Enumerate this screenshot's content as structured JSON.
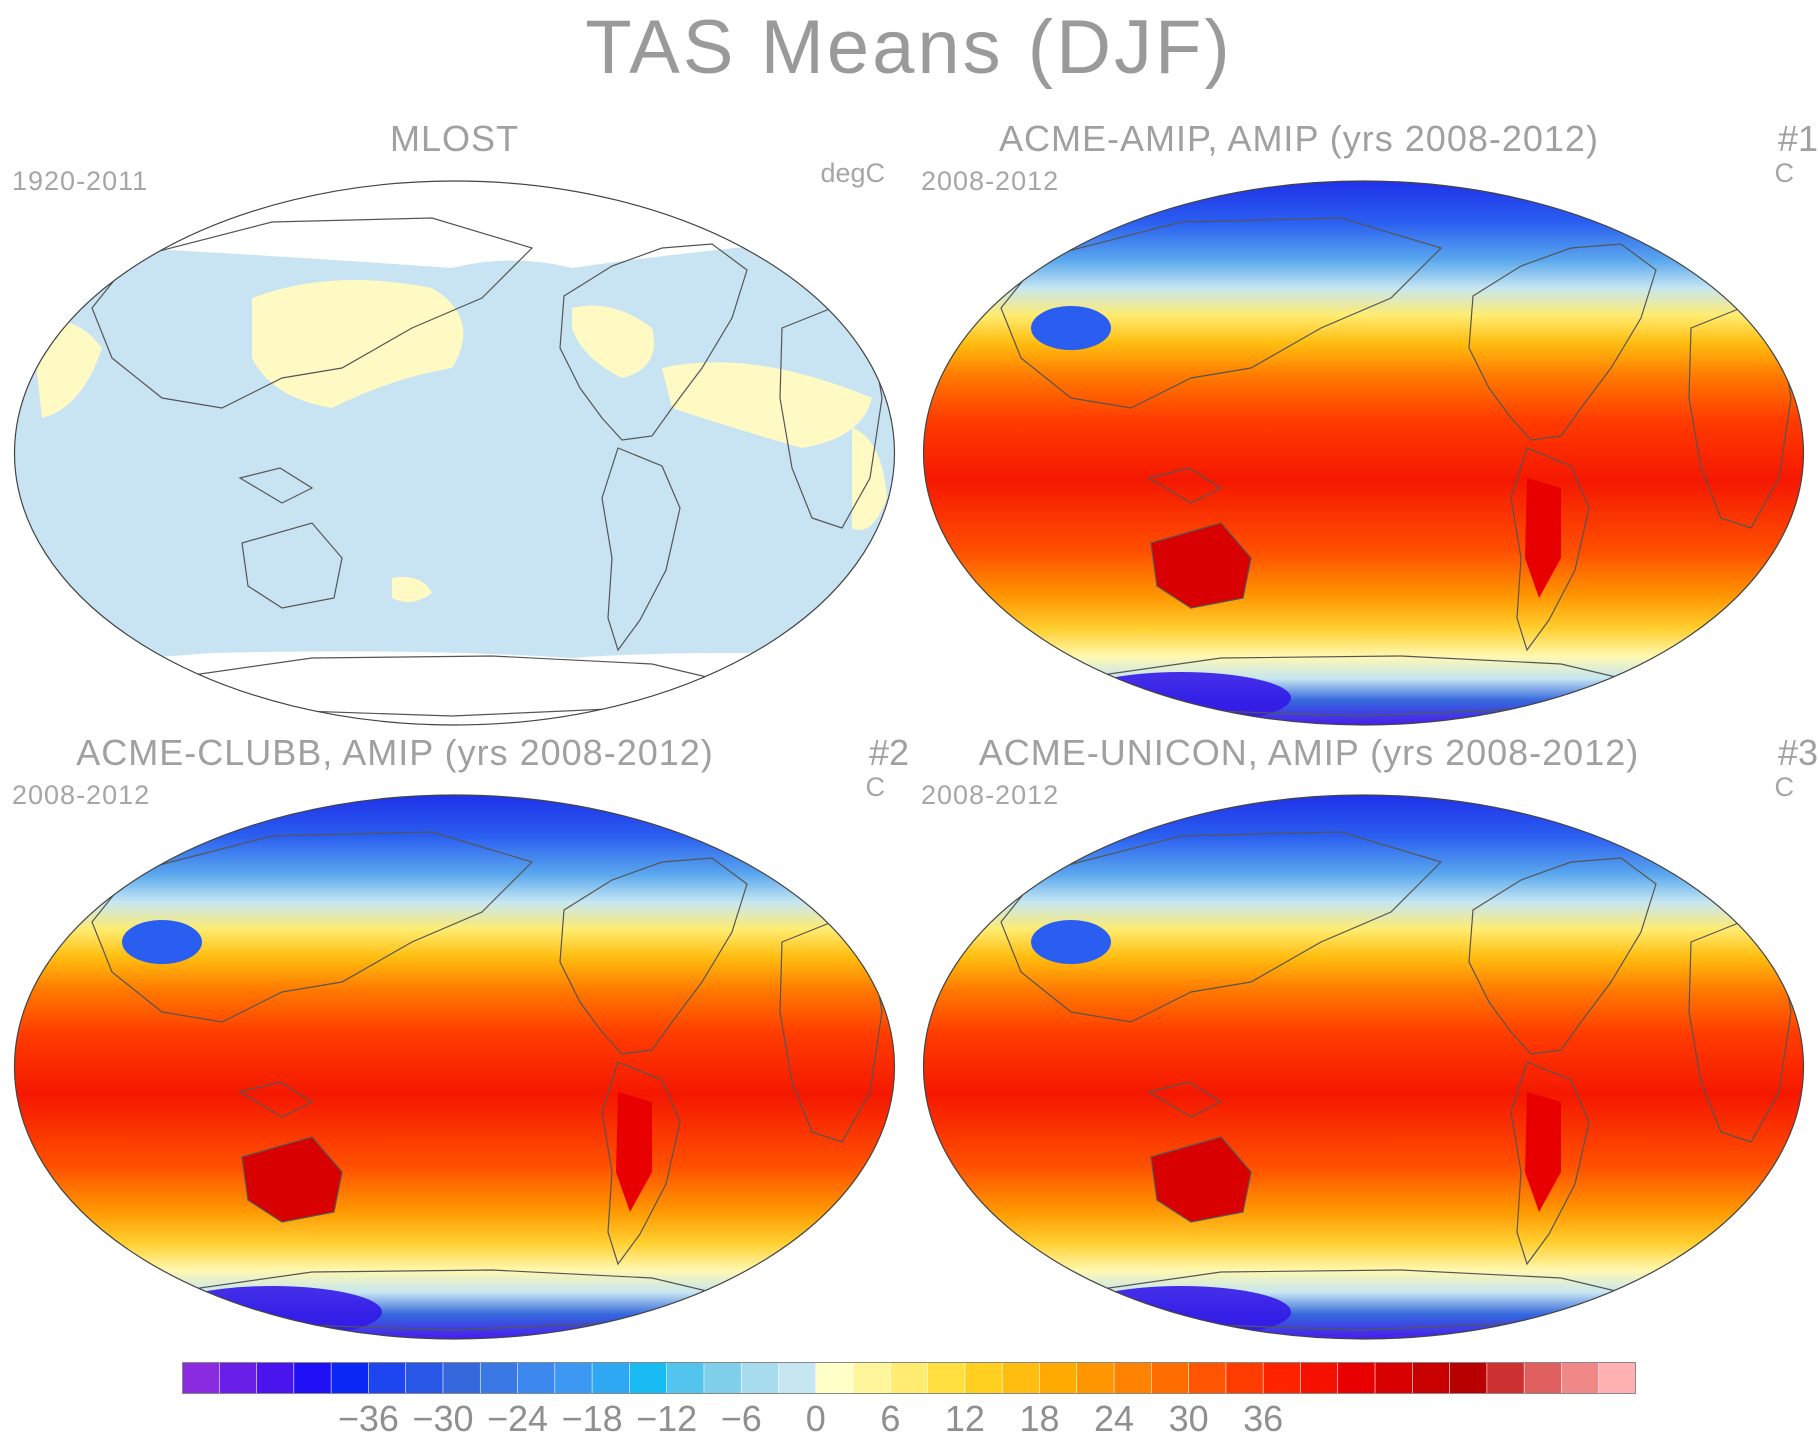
{
  "title": "TAS Means (DJF)",
  "panels": [
    {
      "title": "MLOST",
      "tag": "",
      "left_label": "1920-2011",
      "right_label": "degC",
      "style": "obs"
    },
    {
      "title": "ACME-AMIP, AMIP (yrs 2008-2012)",
      "tag": "#1",
      "left_label": "2008-2012",
      "right_label": "C",
      "style": "model"
    },
    {
      "title": "ACME-CLUBB, AMIP (yrs 2008-2012)",
      "tag": "#2",
      "left_label": "2008-2012",
      "right_label": "C",
      "style": "model"
    },
    {
      "title": "ACME-UNICON, AMIP (yrs 2008-2012)",
      "tag": "#3",
      "left_label": "2008-2012",
      "right_label": "C",
      "style": "model"
    }
  ],
  "colorbar": {
    "tick_labels": [
      "-36",
      "-30",
      "-24",
      "-18",
      "-12",
      "-6",
      "0",
      "6",
      "12",
      "18",
      "24",
      "30",
      "36"
    ],
    "colors": [
      "#8a2be2",
      "#6a1fe8",
      "#4a14ee",
      "#1f10f5",
      "#0a28f5",
      "#1e46f0",
      "#2a58e6",
      "#3468dc",
      "#3a78e6",
      "#3c88ee",
      "#3c98f2",
      "#2ea8f2",
      "#18bcf2",
      "#52c4ee",
      "#80cfea",
      "#a6dcee",
      "#c6e6f2",
      "#ffffc8",
      "#fff59a",
      "#ffec70",
      "#ffe040",
      "#ffd020",
      "#ffbd10",
      "#ffaa00",
      "#ff9600",
      "#ff8200",
      "#ff6c00",
      "#ff5400",
      "#ff3c00",
      "#ff2400",
      "#f51000",
      "#e80000",
      "#d80000",
      "#c80000",
      "#b80000",
      "#cc3030",
      "#e06060",
      "#f08888",
      "#ffb0b0"
    ]
  },
  "legend_note": ""
}
